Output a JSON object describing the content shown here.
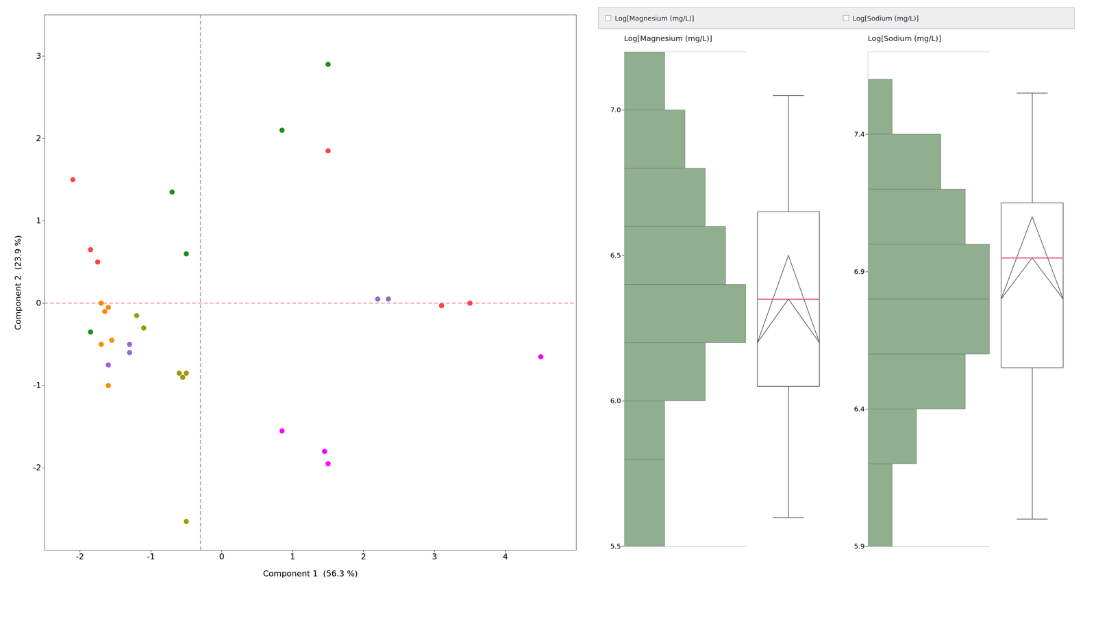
{
  "chart_data": [
    {
      "type": "scatter",
      "xlabel": "Component 1  (56.3 %)",
      "ylabel": "Component 2  (23.9 %)",
      "x": [
        -2.1,
        -1.85,
        -1.75,
        -1.6,
        -1.65,
        -1.7,
        -1.55,
        -1.7,
        -1.6,
        -1.85,
        -1.1,
        -1.2,
        -0.7,
        -1.3,
        -1.3,
        -1.6,
        -0.5,
        -0.5,
        -0.55,
        -0.6,
        -0.5,
        0.85,
        1.5,
        0.85,
        1.5,
        1.45,
        1.5,
        2.2,
        2.35,
        3.1,
        3.5,
        4.5
      ],
      "y": [
        1.5,
        0.65,
        0.5,
        -0.05,
        -0.1,
        0.0,
        -0.45,
        -0.5,
        -1.0,
        -0.35,
        -0.3,
        -0.15,
        1.35,
        -0.5,
        -0.6,
        -0.75,
        0.6,
        -0.85,
        -0.9,
        -0.85,
        -2.65,
        2.1,
        1.85,
        -1.55,
        2.9,
        -1.8,
        -1.95,
        0.05,
        0.05,
        -0.03,
        0.0,
        -0.65
      ],
      "colors": [
        "#FF4444",
        "#FF4444",
        "#FF4444",
        "#FF8800",
        "#FF8800",
        "#FF8800",
        "#FF8800",
        "#FF8800",
        "#FF8800",
        "#228B22",
        "#9B9B00",
        "#9B9B00",
        "#228B22",
        "#9966CC",
        "#9966CC",
        "#9966CC",
        "#228B22",
        "#9B9B00",
        "#9B9B00",
        "#9B9B00",
        "#9B9B00",
        "#228B22",
        "#FF4444",
        "#FF00FF",
        "#228B22",
        "#FF00FF",
        "#FF00FF",
        "#9966CC",
        "#9966CC",
        "#FF4444",
        "#FF4444",
        "#FF00FF"
      ],
      "xlim": [
        -2.5,
        5.0
      ],
      "ylim": [
        -3.0,
        3.5
      ],
      "xticks": [
        -2,
        -1,
        0,
        1,
        2,
        3,
        4
      ],
      "yticks": [
        -2,
        -1,
        0,
        1,
        2,
        3
      ],
      "reference_lines": [
        {
          "axis": "x",
          "value": -0.3,
          "color": "#E05070",
          "line_style": "dashed"
        },
        {
          "axis": "y",
          "value": 0.0,
          "color": "#E05070",
          "line_style": "dashed"
        }
      ]
    },
    {
      "type": "histogram",
      "title": "Log[Magnesium (mg/L)]",
      "orientation": "horizontal",
      "tick_labels": "y",
      "bins": [
        5.5,
        5.8,
        6.0,
        6.2,
        6.4,
        6.6,
        6.8,
        7.0,
        7.2
      ],
      "counts": [
        2,
        2,
        4,
        6,
        5,
        4,
        3,
        2
      ],
      "color": "#8FAF8F",
      "ylim": [
        5.5,
        7.2
      ],
      "yticks": [
        5.5,
        {
          "value": 6,
          "label": "6.0"
        },
        6.5,
        {
          "value": 7,
          "label": "7.0"
        }
      ],
      "box": {
        "q1": 6.05,
        "median": 6.35,
        "q3": 6.65,
        "whisker_low": 5.6,
        "whisker_high": 7.05,
        "notch_low": 6.2,
        "notch_high": 6.5,
        "color": "#E05070"
      }
    },
    {
      "type": "histogram",
      "title": "Log[Sodium (mg/L)]",
      "orientation": "horizontal",
      "tick_labels": "y",
      "bins": [
        5.9,
        6.2,
        6.4,
        6.6,
        6.8,
        7.0,
        7.2,
        7.4,
        7.6
      ],
      "counts": [
        1,
        2,
        4,
        5,
        5,
        4,
        3,
        1
      ],
      "color": "#8FAF8F",
      "ylim": [
        5.9,
        7.7
      ],
      "yticks": [
        5.9,
        6.4,
        6.9,
        7.4
      ],
      "box": {
        "q1": 6.55,
        "median": 6.95,
        "q3": 7.15,
        "whisker_low": 6.0,
        "whisker_high": 7.55,
        "notch_low": 6.8,
        "notch_high": 7.1,
        "color": "#E05070"
      }
    }
  ]
}
